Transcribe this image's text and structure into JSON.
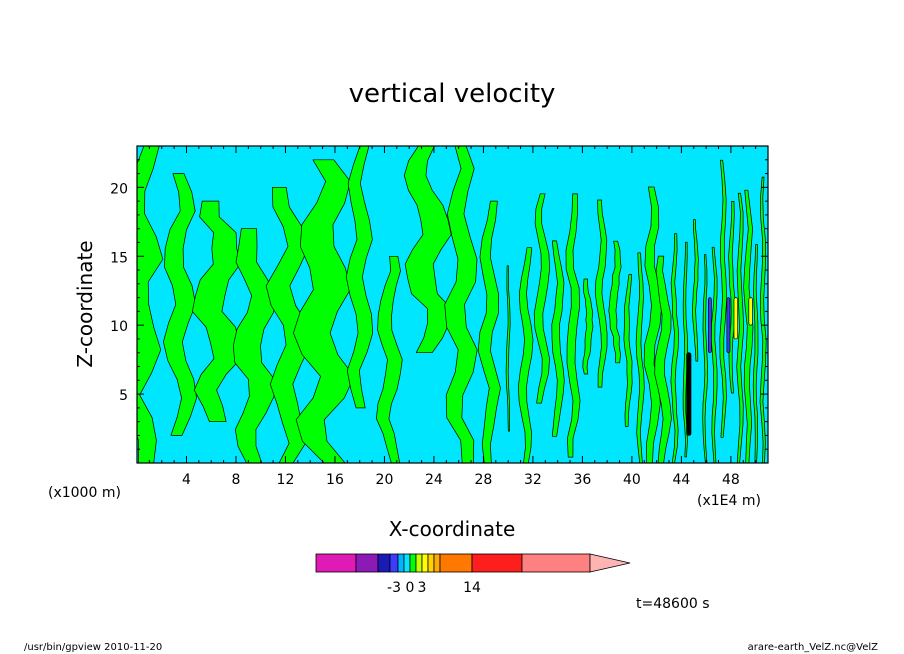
{
  "chart_data": {
    "type": "heatmap",
    "title": "vertical velocity",
    "xlabel": "X-coordinate",
    "ylabel": "Z-coordinate",
    "x_unit_left": "(x1000 m)",
    "x_unit_right": "(x1E4 m)",
    "xlim": [
      0,
      51
    ],
    "ylim": [
      0,
      23
    ],
    "x_ticks": [
      "4",
      "8",
      "12",
      "16",
      "20",
      "24",
      "28",
      "32",
      "36",
      "40",
      "44",
      "48"
    ],
    "x_tick_values": [
      4,
      8,
      12,
      16,
      20,
      24,
      28,
      32,
      36,
      40,
      44,
      48
    ],
    "y_ticks": [
      "5",
      "10",
      "15",
      "20"
    ],
    "y_tick_values": [
      5,
      10,
      15,
      20
    ],
    "colorbar_labels": [
      "-3",
      "0",
      "3",
      "14"
    ],
    "colorbar_colors": [
      "#e01ab4",
      "#8c1ab4",
      "#1a1ab4",
      "#3c3cff",
      "#00b4ff",
      "#00e6ff",
      "#00ff00",
      "#c8ff00",
      "#ffff00",
      "#ffd200",
      "#ffaa00",
      "#ff7800",
      "#ff1e1e",
      "#ff8080",
      "#ffb4b4"
    ],
    "fill_colors": {
      "negative": "#00e6ff",
      "positive": "#00ff00",
      "strong_positive": "#ffff00",
      "strong_negative": "#3c3cff",
      "contour": "#000000"
    },
    "time_label": "t=48600 s"
  },
  "footer": {
    "left": "/usr/bin/gpview   2010-11-20",
    "right": "arare-earth_VelZ.nc@VelZ"
  }
}
